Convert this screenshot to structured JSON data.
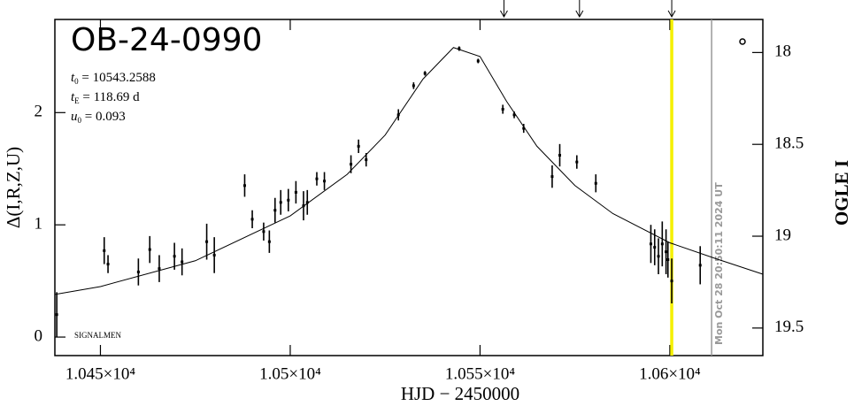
{
  "chart_data": {
    "type": "scatter",
    "title": "OB-24-0990",
    "params": [
      {
        "symbol": "t",
        "sub": "0",
        "text": " = 10543.2588"
      },
      {
        "symbol": "t",
        "sub": "E",
        "text": " = 118.69 d"
      },
      {
        "symbol": "u",
        "sub": "0",
        "text": " = 0.093"
      }
    ],
    "note": "SIGNALMEN",
    "timestamp": "Mon Oct 28 20:50:11 2024 UT",
    "x_label": "HJD − 2450000",
    "y_label": "Δ(I,R,Z,U)",
    "y2_label": "OGLE I",
    "xlim": [
      10438,
      10624.5
    ],
    "ylim": [
      -0.165,
      2.83
    ],
    "y2lim": [
      17.82,
      19.65
    ],
    "xticks": [
      {
        "value": 10450,
        "label": "1.045×10⁴"
      },
      {
        "value": 10500,
        "label": "1.05×10⁴"
      },
      {
        "value": 10550,
        "label": "1.055×10⁴"
      },
      {
        "value": 10600,
        "label": "1.06×10⁴"
      }
    ],
    "yticks": [
      0,
      1,
      2
    ],
    "y2ticks": [
      18,
      18.5,
      19,
      19.5
    ],
    "color": "#000000",
    "x": [
      10438.5,
      10451,
      10452,
      10460,
      10463,
      10465.5,
      10469.5,
      10471.5,
      10478,
      10480,
      10488,
      10490,
      10493,
      10494.5,
      10496,
      10497.5,
      10499.5,
      10501.5,
      10503.5,
      10504.5,
      10507,
      10509,
      10516,
      10518,
      10520,
      10528.5,
      10532.5,
      10535.5,
      10544.5,
      10549.5,
      10556,
      10559,
      10561.5,
      10569,
      10571,
      10575.5,
      10580.5,
      10595,
      10596,
      10597,
      10598,
      10599,
      10599.5,
      10600.5,
      10608
    ],
    "values": [
      0.2,
      0.77,
      0.65,
      0.58,
      0.78,
      0.61,
      0.72,
      0.67,
      0.85,
      0.73,
      1.35,
      1.05,
      0.94,
      0.85,
      1.13,
      1.2,
      1.22,
      1.29,
      1.17,
      1.2,
      1.41,
      1.39,
      1.54,
      1.7,
      1.58,
      1.98,
      2.24,
      2.35,
      2.57,
      2.46,
      2.03,
      1.98,
      1.86,
      1.43,
      1.62,
      1.56,
      1.37,
      0.83,
      0.8,
      0.72,
      0.83,
      0.76,
      0.69,
      0.5,
      0.64
    ],
    "errors": [
      0.2,
      0.12,
      0.08,
      0.12,
      0.12,
      0.12,
      0.12,
      0.12,
      0.16,
      0.16,
      0.1,
      0.08,
      0.08,
      0.1,
      0.11,
      0.11,
      0.1,
      0.1,
      0.13,
      0.11,
      0.06,
      0.08,
      0.08,
      0.06,
      0.06,
      0.05,
      0.03,
      0.02,
      0.02,
      0.02,
      0.04,
      0.03,
      0.04,
      0.1,
      0.1,
      0.06,
      0.08,
      0.17,
      0.16,
      0.16,
      0.2,
      0.2,
      0.16,
      0.2,
      0.17
    ],
    "model": {
      "x": [
        10438,
        10450,
        10475,
        10500,
        10515,
        10525,
        10535,
        10543,
        10550,
        10557,
        10565,
        10575,
        10585,
        10600,
        10612,
        10624.5
      ],
      "y": [
        0.38,
        0.45,
        0.68,
        1.08,
        1.45,
        1.8,
        2.3,
        2.58,
        2.5,
        2.1,
        1.7,
        1.35,
        1.1,
        0.84,
        0.7,
        0.56
      ]
    },
    "arrows_x": [
      10556.3,
      10576.2,
      10600.5
    ],
    "highlight_x": 10600.5,
    "now_x": 10611
  }
}
